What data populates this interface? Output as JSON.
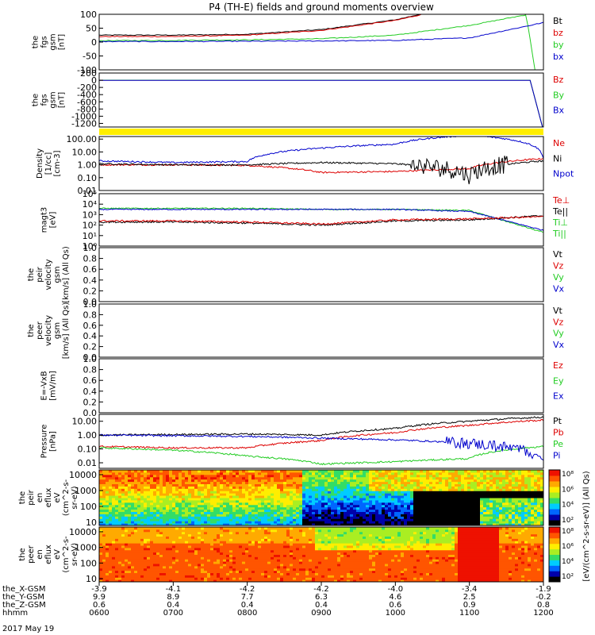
{
  "title": "P4 (TH-E) fields and ground moments overview",
  "colors": {
    "black": "#000000",
    "red": "#dd0000",
    "green": "#22cc22",
    "blue": "#0000cc",
    "yellow": "#ffee00",
    "lightgreen": "#44dd44"
  },
  "panels": [
    {
      "id": "fgs",
      "ylabel": [
        "the",
        "fgs",
        "gsm",
        "[nT]"
      ],
      "ticks": [
        "100",
        "50",
        "0",
        "-50",
        "-100"
      ],
      "tickvals": [
        100,
        50,
        0,
        -50,
        -100
      ],
      "yrange": [
        -100,
        100
      ],
      "legend": [
        {
          "text": "Bt",
          "color": "#000000"
        },
        {
          "text": "bz",
          "color": "#dd0000"
        },
        {
          "text": "by",
          "color": "#22cc22"
        },
        {
          "text": "bx",
          "color": "#0000cc"
        }
      ]
    },
    {
      "id": "fgm",
      "ylabel": [
        "the",
        "fgs",
        "gsm",
        "[nT]"
      ],
      "ticks": [
        "200",
        "0",
        "-200",
        "-400",
        "-600",
        "-800",
        "-1000",
        "-1200"
      ],
      "tickvals": [
        200,
        0,
        -200,
        -400,
        -600,
        -800,
        -1000,
        -1200
      ],
      "yrange": [
        -1300,
        200
      ],
      "legend": [
        {
          "text": "Bz",
          "color": "#dd0000"
        },
        {
          "text": "By",
          "color": "#22cc22"
        },
        {
          "text": "Bx",
          "color": "#0000cc"
        }
      ]
    },
    {
      "id": "density",
      "ylabel": [
        "Density",
        "[1/cc]",
        "[cm-3]"
      ],
      "ticks": [
        "100.00",
        "10.00",
        "1.00",
        "0.10",
        "0.01"
      ],
      "tickvals": [
        2,
        1,
        0,
        -1,
        -2
      ],
      "yrange": [
        -2,
        2.2
      ],
      "legend": [
        {
          "text": "Ne",
          "color": "#dd0000"
        },
        {
          "text": "Ni",
          "color": "#000000"
        },
        {
          "text": "Npot",
          "color": "#0000cc"
        }
      ]
    },
    {
      "id": "temp",
      "ylabel": [
        "magt3",
        "[eV]"
      ],
      "ticks": [
        "10⁵",
        "10⁴",
        "10³",
        "10²",
        "10¹",
        "10⁰"
      ],
      "tickvals": [
        5,
        4,
        3,
        2,
        1,
        0
      ],
      "yrange": [
        0,
        5
      ],
      "legend": [
        {
          "text": "Te⊥",
          "color": "#dd0000"
        },
        {
          "text": "Te||",
          "color": "#000000"
        },
        {
          "text": "Ti⊥",
          "color": "#22cc22"
        },
        {
          "text": "Ti||",
          "color": "#22cc22"
        }
      ]
    },
    {
      "id": "peirv",
      "ylabel": [
        "the",
        "peir",
        "velocity",
        "gsm",
        "[km/s] (All Qs)"
      ],
      "ticks": [
        "1.0",
        "0.8",
        "0.6",
        "0.4",
        "0.2",
        "0.0"
      ],
      "tickvals": [
        1,
        0.8,
        0.6,
        0.4,
        0.2,
        0
      ],
      "yrange": [
        0,
        1
      ],
      "legend": [
        {
          "text": "Vt",
          "color": "#000000"
        },
        {
          "text": "Vz",
          "color": "#dd0000"
        },
        {
          "text": "Vy",
          "color": "#22cc22"
        },
        {
          "text": "Vx",
          "color": "#0000cc"
        }
      ]
    },
    {
      "id": "peerv",
      "ylabel": [
        "the",
        "peer",
        "velocity",
        "gsm",
        "[km/s] (All Qs)"
      ],
      "ticks": [
        "1.0",
        "0.8",
        "0.6",
        "0.4",
        "0.2",
        "0.0"
      ],
      "tickvals": [
        1,
        0.8,
        0.6,
        0.4,
        0.2,
        0
      ],
      "yrange": [
        0,
        1
      ],
      "legend": [
        {
          "text": "Vt",
          "color": "#000000"
        },
        {
          "text": "Vz",
          "color": "#dd0000"
        },
        {
          "text": "Vy",
          "color": "#22cc22"
        },
        {
          "text": "Vx",
          "color": "#0000cc"
        }
      ]
    },
    {
      "id": "efield",
      "ylabel": [
        "E=-VxB",
        "[mV/m]"
      ],
      "ticks": [
        "1.0",
        "0.8",
        "0.6",
        "0.4",
        "0.2",
        "0.0"
      ],
      "tickvals": [
        1,
        0.8,
        0.6,
        0.4,
        0.2,
        0
      ],
      "yrange": [
        0,
        1
      ],
      "legend": [
        {
          "text": "Ez",
          "color": "#dd0000"
        },
        {
          "text": "Ey",
          "color": "#22cc22"
        },
        {
          "text": "Ex",
          "color": "#0000cc"
        }
      ]
    },
    {
      "id": "pressure",
      "ylabel": [
        "Pressure",
        "[nPa]"
      ],
      "ticks": [
        "10.00",
        "1.00",
        "0.10",
        "0.01"
      ],
      "tickvals": [
        1,
        0,
        -1,
        -2
      ],
      "yrange": [
        -2.4,
        1.5
      ],
      "legend": [
        {
          "text": "Pt",
          "color": "#000000"
        },
        {
          "text": "Pb",
          "color": "#dd0000"
        },
        {
          "text": "Pe",
          "color": "#22cc22"
        },
        {
          "text": "Pi",
          "color": "#0000cc"
        }
      ]
    },
    {
      "id": "peirspec",
      "ylabel": [
        "the",
        "peir",
        "en",
        "eflux",
        "eV",
        "(cm^2-s-",
        "sr-eV)"
      ],
      "ticks": [
        "10000",
        "1000",
        "100",
        "10"
      ],
      "tickvals": [
        4,
        3,
        2,
        1
      ],
      "yrange": [
        0.8,
        4.3
      ],
      "legend": []
    },
    {
      "id": "peerspec",
      "ylabel": [
        "the",
        "peer",
        "en",
        "eflux",
        "eV",
        "(cm^2-s-",
        "sr-eV)"
      ],
      "ticks": [
        "10000",
        "1000",
        "100",
        "10"
      ],
      "tickvals": [
        4,
        3,
        2,
        1
      ],
      "yrange": [
        0.8,
        4.3
      ],
      "legend": []
    }
  ],
  "colorbar": {
    "ticks": [
      "10⁸",
      "10⁶",
      "10⁴",
      "10²"
    ],
    "label": "[eV/(cm^2-s-sr-eV)] (All Qs)"
  },
  "xaxis": {
    "rows": [
      {
        "label": "the_X-GSM",
        "values": [
          "-3.9",
          "-4.1",
          "-4.2",
          "-4.2",
          "-4.0",
          "-3.4",
          "-1.9"
        ]
      },
      {
        "label": "the_Y-GSM",
        "values": [
          "9.9",
          "8.9",
          "7.7",
          "6.3",
          "4.6",
          "2.5",
          "-0.2"
        ]
      },
      {
        "label": "the_Z-GSM",
        "values": [
          "0.6",
          "0.4",
          "0.4",
          "0.4",
          "0.6",
          "0.9",
          "0.8"
        ]
      },
      {
        "label": "hhmm",
        "values": [
          "0600",
          "0700",
          "0800",
          "0900",
          "1000",
          "1100",
          "1200"
        ]
      }
    ],
    "date": "2017 May 19"
  },
  "chart_data": {
    "type": "line",
    "title": "P4 (TH-E) fields and ground moments overview",
    "x": [
      "0600",
      "0700",
      "0800",
      "0900",
      "1000",
      "1100",
      "1200"
    ],
    "series": [
      {
        "name": "Bt",
        "panel": "fgs",
        "values": [
          25,
          25,
          28,
          45,
          80,
          140,
          null
        ]
      },
      {
        "name": "bz",
        "panel": "fgs",
        "values": [
          20,
          20,
          25,
          42,
          78,
          138,
          null
        ]
      },
      {
        "name": "by",
        "panel": "fgs",
        "values": [
          5,
          6,
          8,
          12,
          25,
          60,
          110
        ]
      },
      {
        "name": "bx",
        "panel": "fgs",
        "values": [
          2,
          2,
          3,
          4,
          6,
          15,
          70
        ]
      },
      {
        "name": "Ne",
        "panel": "density",
        "values": [
          1.0,
          1.0,
          0.9,
          0.25,
          0.3,
          0.5,
          3.0
        ]
      },
      {
        "name": "Ni",
        "panel": "density",
        "values": [
          1.2,
          1.0,
          1.0,
          1.5,
          1.2,
          0.15,
          2.0
        ]
      },
      {
        "name": "Npot",
        "panel": "density",
        "values": [
          2.0,
          1.5,
          1.8,
          20,
          40,
          200,
          3.0
        ]
      },
      {
        "name": "Pt",
        "panel": "pressure",
        "values": [
          1.0,
          1.1,
          1.2,
          1.0,
          3.0,
          10.0,
          20.0
        ]
      },
      {
        "name": "Pb",
        "panel": "pressure",
        "values": [
          0.15,
          0.12,
          0.12,
          0.4,
          1.5,
          5.0,
          12.0
        ]
      },
      {
        "name": "Pe",
        "panel": "pressure",
        "values": [
          0.12,
          0.08,
          0.03,
          0.008,
          0.012,
          0.02,
          0.15
        ]
      },
      {
        "name": "Pi",
        "panel": "pressure",
        "values": [
          1.0,
          0.9,
          0.8,
          0.6,
          0.45,
          0.25,
          0.015
        ]
      }
    ]
  }
}
